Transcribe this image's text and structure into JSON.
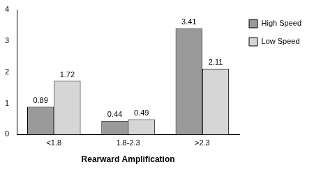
{
  "chart_data": {
    "type": "bar",
    "x_label": "Rearward Amplification",
    "categories": [
      "<1.8",
      "1.8-2.3",
      ">2.3"
    ],
    "series": [
      {
        "name": "High Speed",
        "color": "#9a9a9a",
        "values": [
          0.89,
          0.44,
          3.41
        ]
      },
      {
        "name": "Low Speed",
        "color": "#d6d6d6",
        "values": [
          1.72,
          0.49,
          2.11
        ]
      }
    ],
    "ylim": [
      0,
      4
    ],
    "yticks": [
      0,
      1,
      2,
      3,
      4
    ],
    "grid": false,
    "legend": "right",
    "data_labels": true
  }
}
